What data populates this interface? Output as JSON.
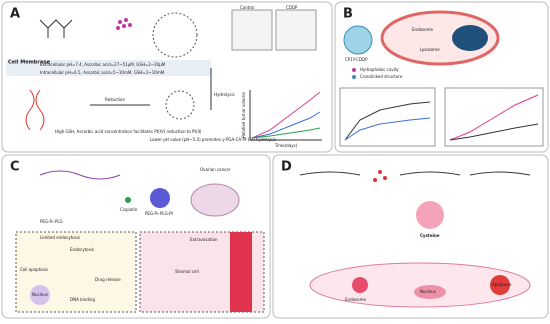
{
  "panels": [
    {
      "label": "A",
      "texts": [
        "Cell Membrane",
        "Extracellular pH=7.4, Ascorbic acid=27~51μM, GSH=2~20μM",
        "Intracellular pH=6.5, Ascorbic acid=5~10mM, GSH=1~10mM",
        "Reduction",
        "Hydrolysis",
        "High GSH, Ascorbic acid concentration facilitates Pt(IV) reduction to Pt(II)",
        "Lower pH value (pH~5.0) promotes γ-PGA-CA-Pt (IV) hydrolysis",
        "Relative tumor volume",
        "Time(days)",
        "Control",
        "CDDP"
      ]
    },
    {
      "label": "B",
      "texts": [
        "CP1Y-CDDP",
        "Hydrophobic cavity",
        "Crosslinked structure",
        "Lysosome",
        "Endosome"
      ]
    },
    {
      "label": "C",
      "texts": [
        "Cisplatin",
        "Ovarian cancer",
        "PEG-P₁-PLG",
        "PEG-P₁-PLG-Pt",
        "Limited endocytosis",
        "Endocytosis",
        "Cell apoptosis",
        "Drug release",
        "DNA binding",
        "Nucleus",
        "Extravasation",
        "Stromal cell"
      ]
    },
    {
      "label": "D",
      "texts": [
        "Cysteine",
        "Endosome",
        "Apoptosis",
        "Nucleus"
      ]
    }
  ]
}
